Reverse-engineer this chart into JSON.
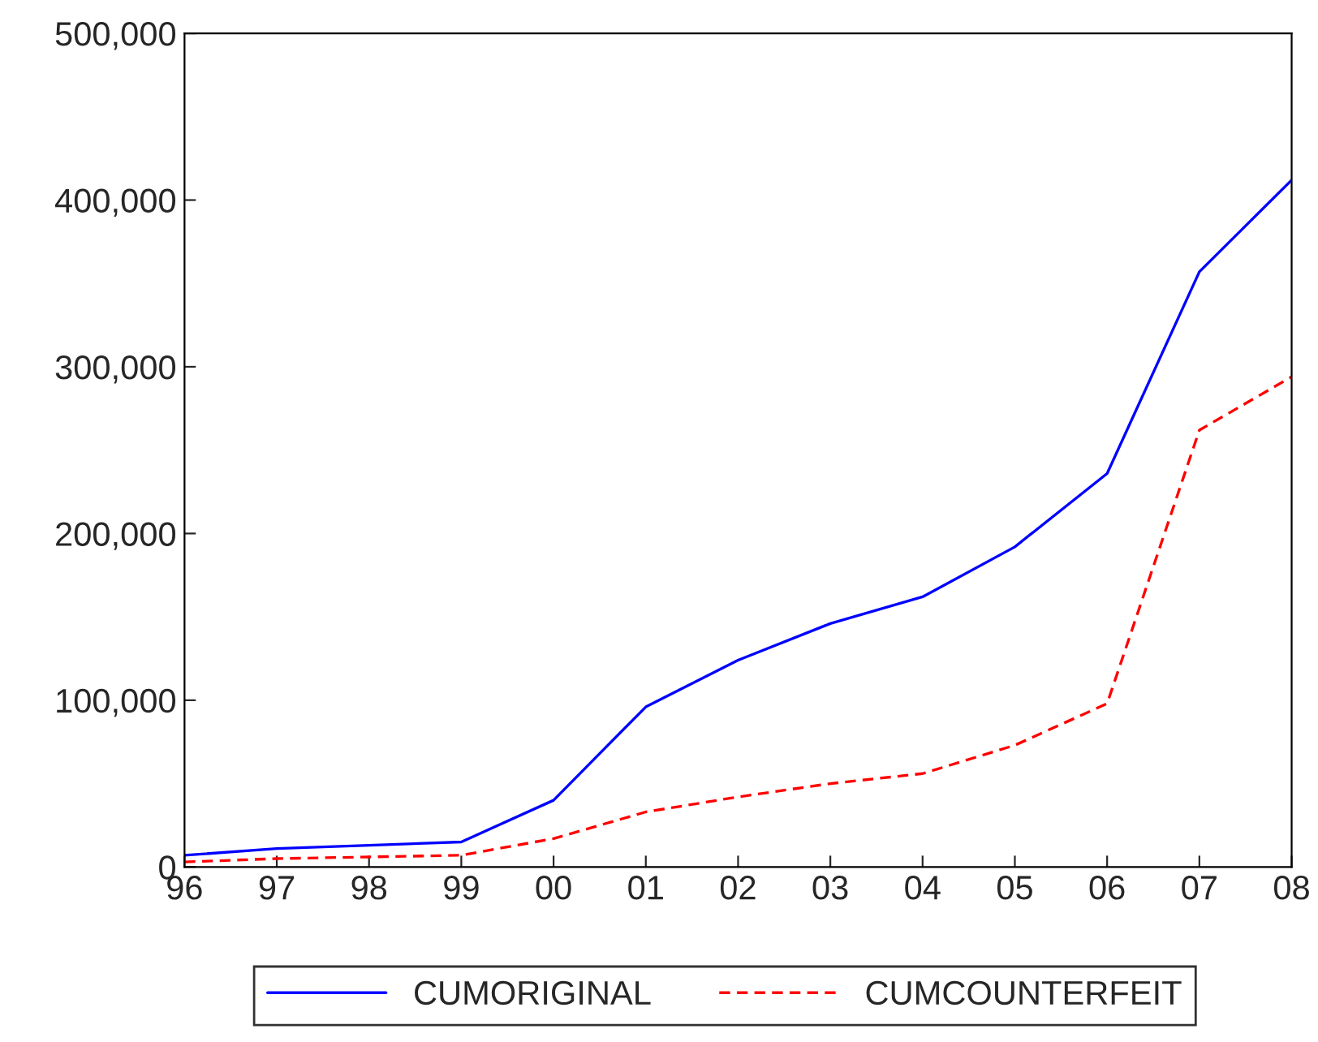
{
  "chart_data": {
    "type": "line",
    "categories": [
      "96",
      "97",
      "98",
      "99",
      "00",
      "01",
      "02",
      "03",
      "04",
      "05",
      "06",
      "07",
      "08"
    ],
    "series": [
      {
        "name": "CUMORIGINAL",
        "color": "#0000ff",
        "line_style": "solid",
        "values": [
          7000,
          11000,
          13000,
          15000,
          40000,
          96000,
          124000,
          146000,
          162000,
          192000,
          236000,
          357000,
          412000
        ]
      },
      {
        "name": "CUMCOUNTERFEIT",
        "color": "#ff0000",
        "line_style": "dashed",
        "values": [
          3000,
          5000,
          6000,
          7000,
          17000,
          33000,
          42000,
          50000,
          56000,
          73000,
          98000,
          262000,
          294000
        ]
      }
    ],
    "ylim": [
      0,
      500000
    ],
    "yticks": [
      {
        "value": 0,
        "label": "0"
      },
      {
        "value": 100000,
        "label": "100,000"
      },
      {
        "value": 200000,
        "label": "200,000"
      },
      {
        "value": 300000,
        "label": "300,000"
      },
      {
        "value": 400000,
        "label": "400,000"
      },
      {
        "value": 500000,
        "label": "500,000"
      }
    ],
    "grid": false,
    "legend": "bottom",
    "marker": "none"
  }
}
